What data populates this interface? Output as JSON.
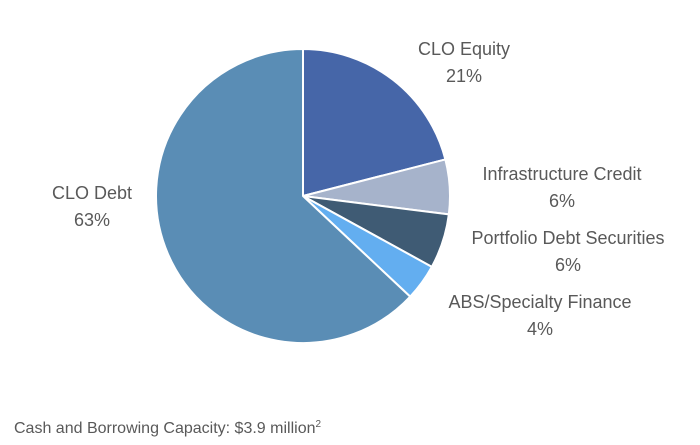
{
  "chart_data": {
    "type": "pie",
    "title": "",
    "start_angle_deg": 0,
    "direction": "clockwise",
    "slices": [
      {
        "name": "CLO Equity",
        "pct_label": "21%",
        "value": 21,
        "color": "#4666a8"
      },
      {
        "name": "Infrastructure Credit",
        "pct_label": "6%",
        "value": 6,
        "color": "#a6b3cb"
      },
      {
        "name": "Portfolio Debt Securities",
        "pct_label": "6%",
        "value": 6,
        "color": "#3f5b74"
      },
      {
        "name": "ABS/Specialty Finance",
        "pct_label": "4%",
        "value": 4,
        "color": "#63aef0"
      },
      {
        "name": "CLO Debt",
        "pct_label": "63%",
        "value": 63,
        "color": "#5a8db5"
      }
    ]
  },
  "footnote": {
    "text": "Cash and Borrowing Capacity: $3.9 million",
    "superscript": "2"
  }
}
